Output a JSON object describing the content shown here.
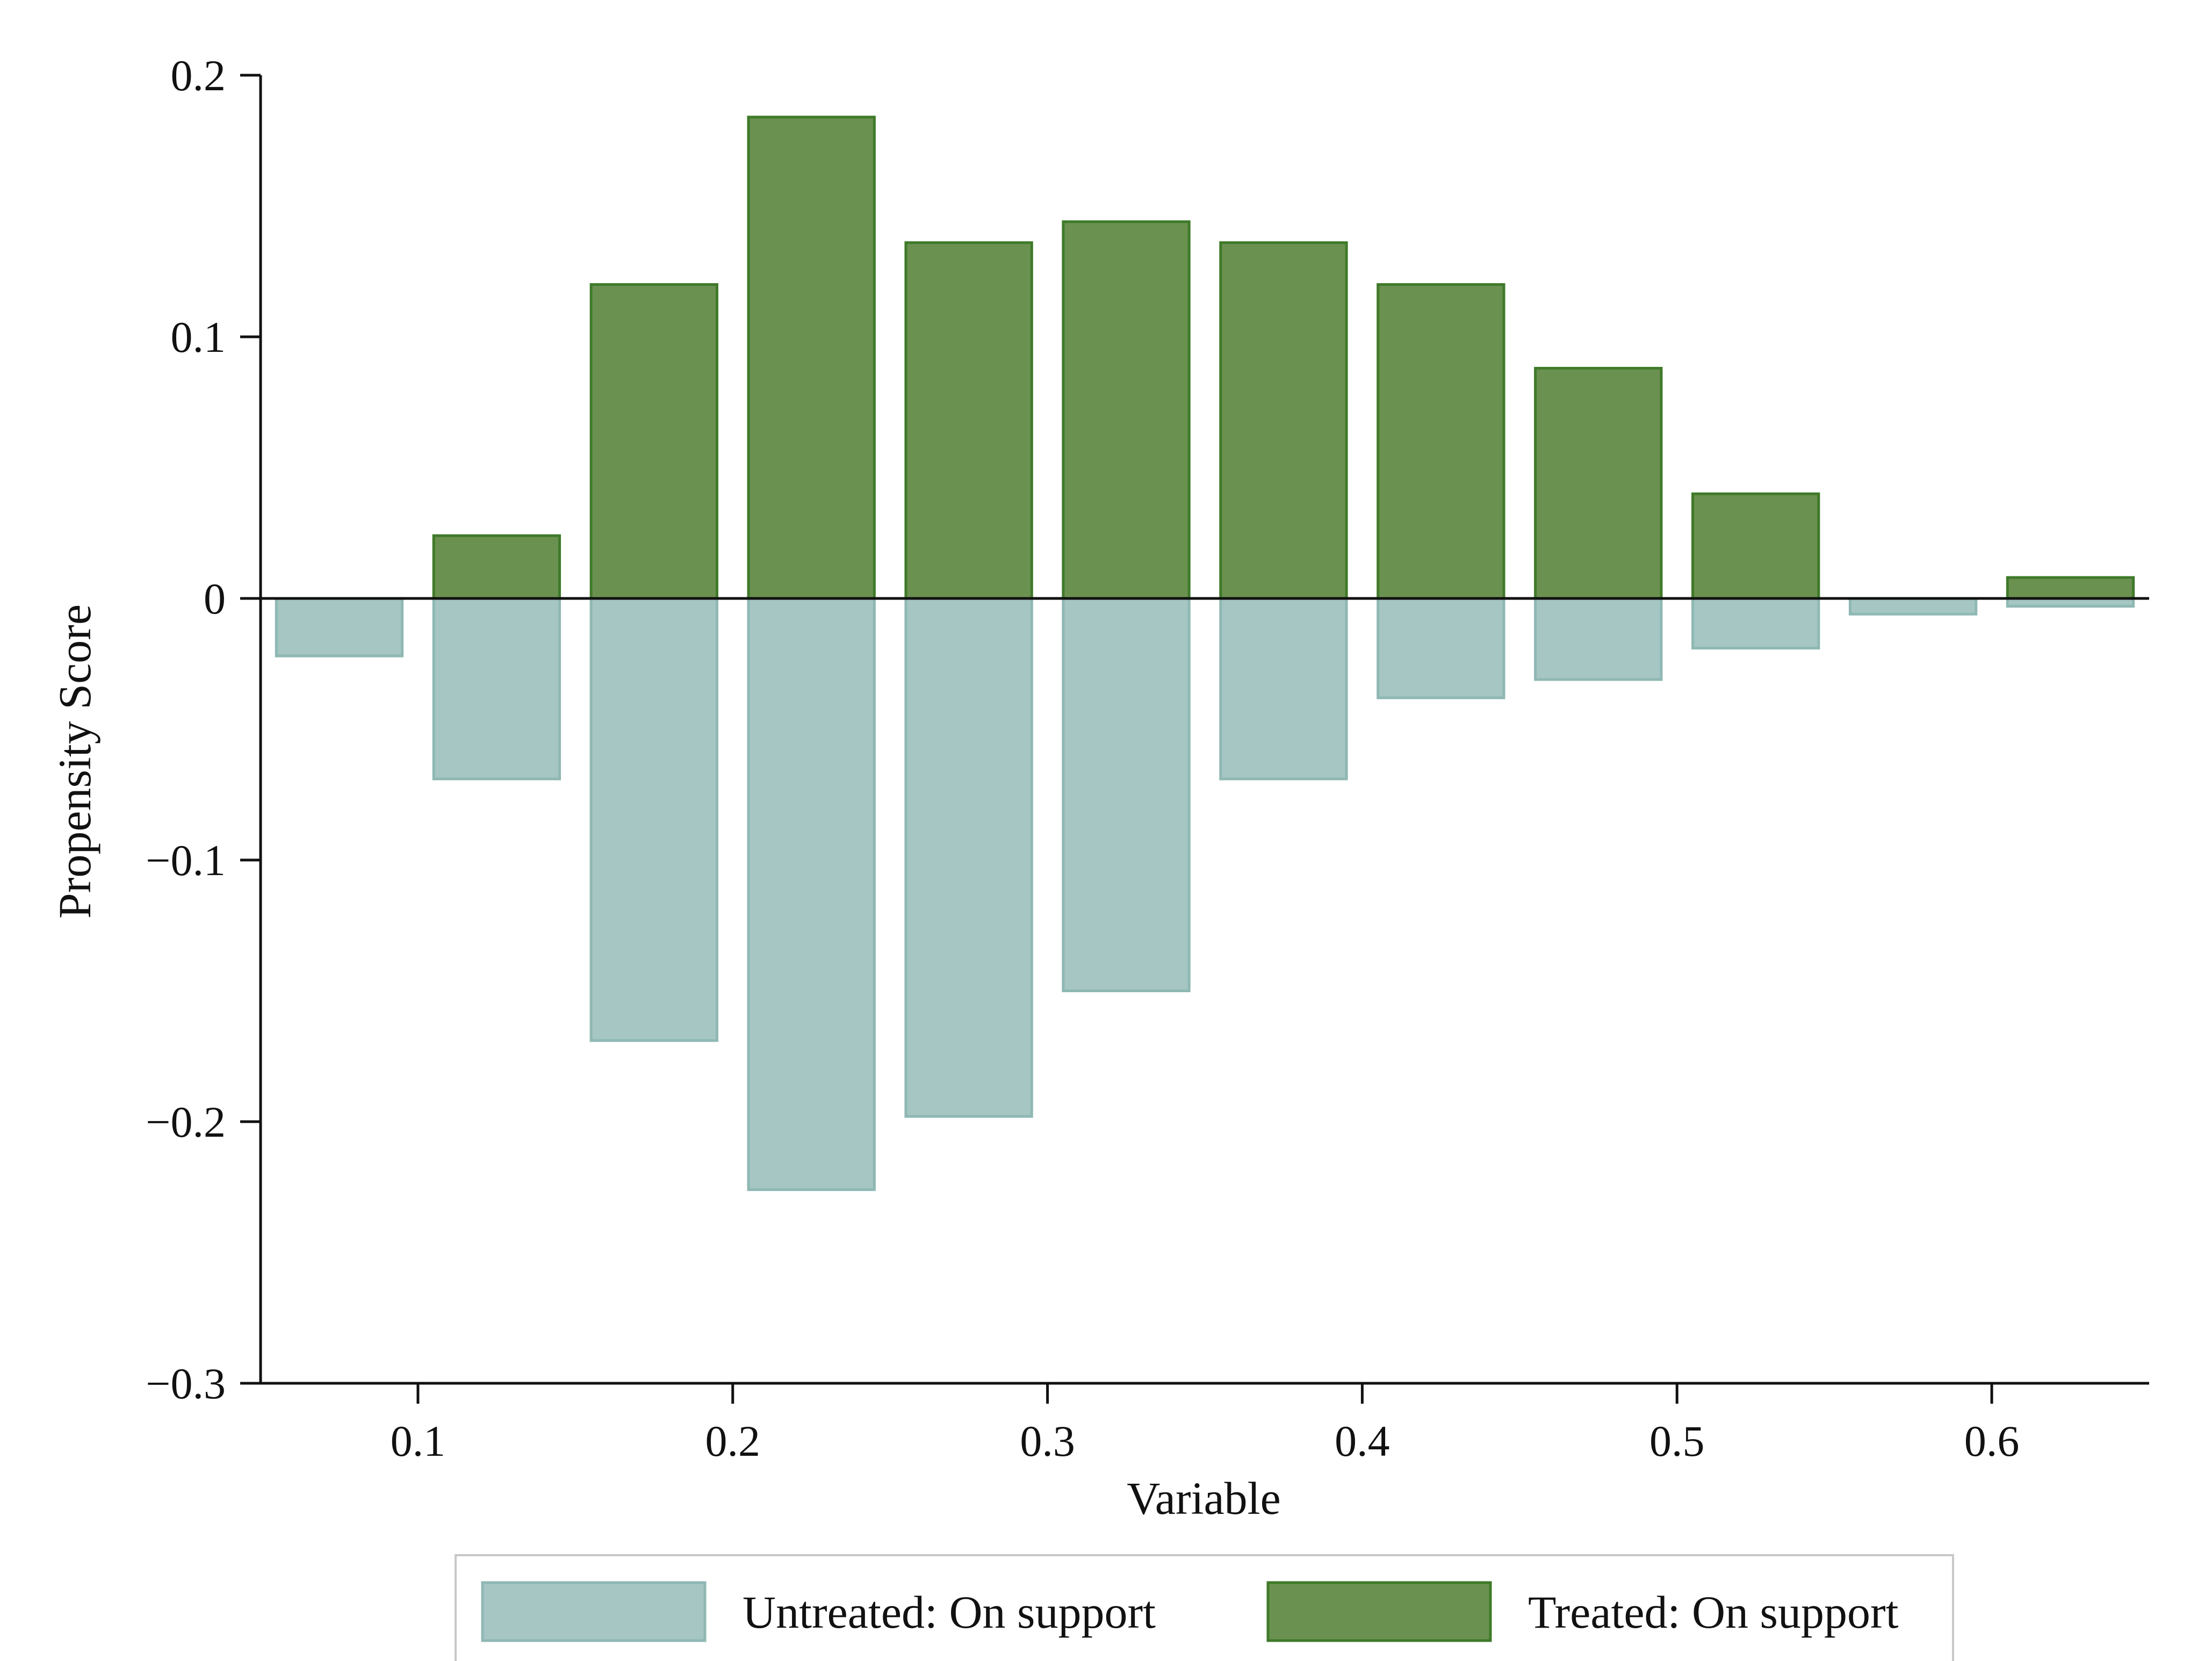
{
  "chart_data": {
    "type": "bar",
    "title": "",
    "xlabel": "Variable",
    "ylabel": "Propensity Score",
    "xlim": [
      0.05,
      0.65
    ],
    "ylim": [
      -0.3,
      0.2
    ],
    "xticks": [
      {
        "value": 0.1,
        "label": "0.1"
      },
      {
        "value": 0.2,
        "label": "0.2"
      },
      {
        "value": 0.3,
        "label": "0.3"
      },
      {
        "value": 0.4,
        "label": "0.4"
      },
      {
        "value": 0.5,
        "label": "0.5"
      },
      {
        "value": 0.6,
        "label": "0.6"
      }
    ],
    "yticks": [
      {
        "value": 0.2,
        "label": "0.2"
      },
      {
        "value": 0.1,
        "label": "0.1"
      },
      {
        "value": 0,
        "label": "0"
      },
      {
        "value": -0.1,
        "label": "−0.1"
      },
      {
        "value": -0.2,
        "label": "−0.2"
      },
      {
        "value": -0.3,
        "label": "−0.3"
      }
    ],
    "bin_width": 0.05,
    "bar_width": 0.04,
    "bins": [
      0.075,
      0.125,
      0.175,
      0.225,
      0.275,
      0.325,
      0.375,
      0.425,
      0.475,
      0.525,
      0.575,
      0.625
    ],
    "series": [
      {
        "name": "Untreated: On support",
        "color": "#a5c6c2",
        "edge": "#8fb8b3",
        "values": [
          -0.022,
          -0.069,
          -0.169,
          -0.226,
          -0.198,
          -0.15,
          -0.069,
          -0.038,
          -0.031,
          -0.019,
          -0.006,
          -0.003
        ]
      },
      {
        "name": "Treated: On support",
        "color": "#6b9150",
        "edge": "#3f7a2a",
        "values": [
          0,
          0.024,
          0.12,
          0.184,
          0.136,
          0.144,
          0.136,
          0.12,
          0.088,
          0.04,
          0,
          0.008
        ]
      }
    ],
    "legend_position": "bottom-center",
    "grid": false
  }
}
